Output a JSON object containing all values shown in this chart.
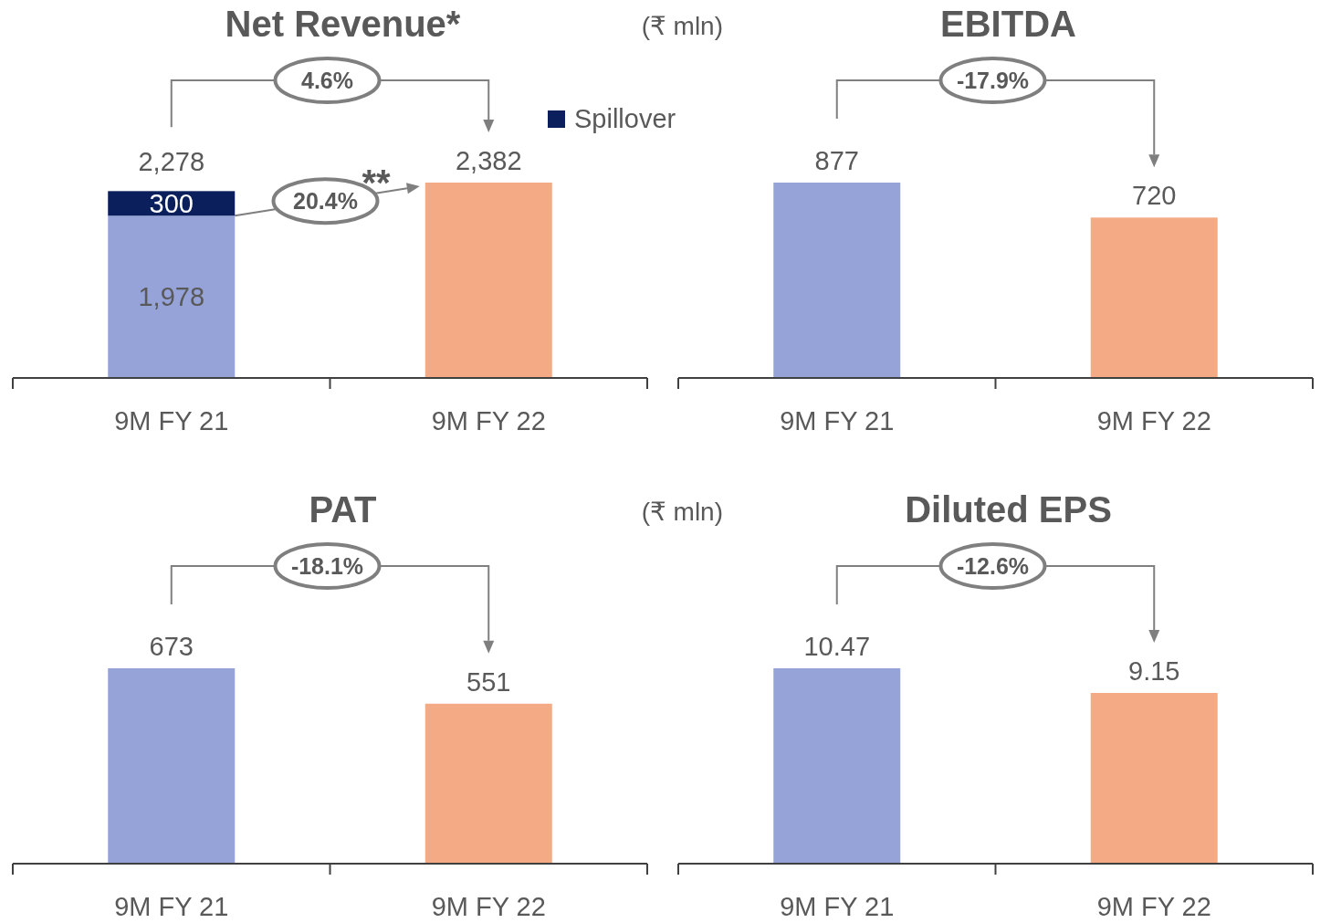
{
  "chart_data": [
    {
      "type": "bar",
      "title": "Net Revenue*",
      "categories": [
        "9M FY 21",
        "9M FY 22"
      ],
      "stacked": true,
      "totals": [
        "2,278",
        null
      ],
      "legend": "top right",
      "annotations": [
        "4.6%",
        "20.4%",
        "**",
        "(₹ mln)"
      ],
      "series": [
        {
          "values": [
            1978,
            2382
          ],
          "value_labels": [
            "1,978",
            "2,382"
          ],
          "colors": [
            "#95a3d8",
            "#f4aa85"
          ]
        },
        {
          "name": "Spillover",
          "color": "#0b1f5c",
          "values": [
            300,
            null
          ],
          "value_labels": [
            "300",
            null
          ]
        }
      ]
    },
    {
      "type": "bar",
      "title": "EBITDA",
      "categories": [
        "9M FY 21",
        "9M FY 22"
      ],
      "data_labels": true,
      "annotations": [
        "-17.9%"
      ],
      "series": [
        {
          "values": [
            877,
            720
          ],
          "colors": [
            "#95a3d8",
            "#f4aa85"
          ]
        }
      ]
    },
    {
      "type": "bar",
      "title": "PAT",
      "categories": [
        "9M FY 21",
        "9M FY 22"
      ],
      "data_labels": true,
      "annotations": [
        "-18.1%",
        "(₹ mln)"
      ],
      "series": [
        {
          "values": [
            673,
            551
          ],
          "colors": [
            "#95a3d8",
            "#f4aa85"
          ]
        }
      ]
    },
    {
      "type": "bar",
      "title": "Diluted EPS",
      "categories": [
        "9M FY 21",
        "9M FY 22"
      ],
      "data_labels": true,
      "annotations": [
        "-12.6%"
      ],
      "series": [
        {
          "values": [
            10.47,
            9.15
          ],
          "colors": [
            "#95a3d8",
            "#f4aa85"
          ]
        }
      ]
    }
  ]
}
